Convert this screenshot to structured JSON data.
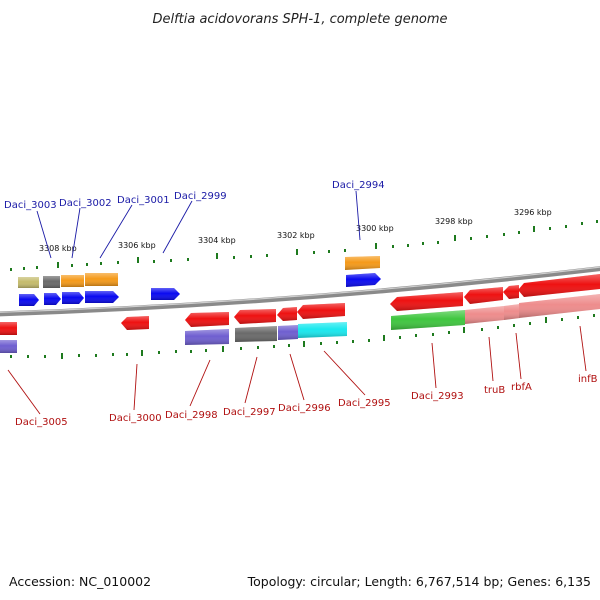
{
  "header": {
    "title": "Delftia acidovorans SPH-1, complete genome"
  },
  "footer": {
    "accession": "Accession: NC_010002",
    "topology": "Topology: circular; Length: 6,767,514 bp; Genes: 6,135"
  },
  "scale": {
    "ticks": [
      "3308 kbp",
      "3306 kbp",
      "3304 kbp",
      "3302 kbp",
      "3300 kbp",
      "3298 kbp",
      "3296 kbp"
    ]
  },
  "labels": {
    "top": [
      "Daci_3003",
      "Daci_3002",
      "Daci_3001",
      "Daci_2999",
      "Daci_2994"
    ],
    "bottom": [
      "Daci_3005",
      "Daci_3000",
      "Daci_2998",
      "Daci_2997",
      "Daci_2996",
      "Daci_2995",
      "Daci_2993",
      "truB",
      "rbfA",
      "infB"
    ]
  },
  "colors": {
    "red": "#ee1111",
    "blue": "#0a0af0",
    "orange": "#f59a1a",
    "olive": "#c4bb6c",
    "gray": "#6a6a6a",
    "purple": "#6f5fd0",
    "cyan": "#1ae8ee",
    "green": "#3fc63f",
    "pink": "#ee8c8c",
    "backbone": "#8a8a8a",
    "tick": "#1e7a1e",
    "label_top": "#1a1aa6",
    "label_bottom": "#b01010"
  }
}
